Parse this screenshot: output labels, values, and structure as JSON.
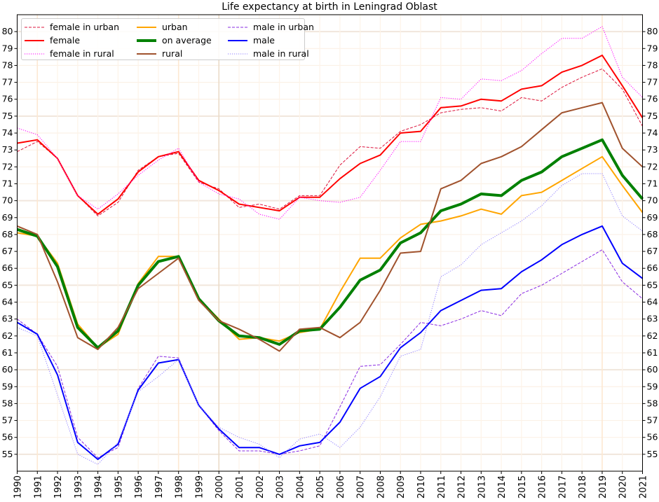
{
  "chart_data": {
    "type": "line",
    "title": "Life expectancy at birth in Leningrad Oblast",
    "xlabel": "",
    "ylabel": "",
    "xlim": [
      1990,
      2021
    ],
    "ylim": [
      54,
      81
    ],
    "grid": true,
    "legend_position": "top-left",
    "x": [
      1990,
      1991,
      1992,
      1993,
      1994,
      1995,
      1996,
      1997,
      1998,
      1999,
      2000,
      2001,
      2002,
      2003,
      2004,
      2005,
      2006,
      2007,
      2008,
      2009,
      2010,
      2011,
      2012,
      2013,
      2014,
      2015,
      2016,
      2017,
      2018,
      2019,
      2020,
      2021
    ],
    "x_tick_labels": [
      "1990",
      "1991",
      "1992",
      "1993",
      "1994",
      "1995",
      "1996",
      "1997",
      "1998",
      "1999",
      "2000",
      "2001",
      "2002",
      "2003",
      "2004",
      "2005",
      "2006",
      "2007",
      "2008",
      "2009",
      "2010",
      "2011",
      "2012",
      "2013",
      "2014",
      "2015",
      "2016",
      "2017",
      "2018",
      "2019",
      "2020",
      "2021"
    ],
    "y_ticks": [
      55,
      56,
      57,
      58,
      59,
      60,
      61,
      62,
      63,
      64,
      65,
      66,
      67,
      68,
      69,
      70,
      71,
      72,
      73,
      74,
      75,
      76,
      77,
      78,
      79,
      80
    ],
    "y_tick_labels": [
      "55",
      "56",
      "57",
      "58",
      "59",
      "60",
      "61",
      "62",
      "63",
      "64",
      "65",
      "66",
      "67",
      "68",
      "69",
      "70",
      "71",
      "72",
      "73",
      "74",
      "75",
      "76",
      "77",
      "78",
      "79",
      "80"
    ],
    "series": [
      {
        "name": "female in urban",
        "color": "#dc143c",
        "style": "dashed",
        "width": 1,
        "values": [
          72.9,
          73.5,
          72.5,
          70.3,
          69.1,
          69.9,
          71.8,
          72.6,
          72.8,
          71.1,
          70.7,
          69.6,
          69.8,
          69.5,
          70.3,
          70.3,
          72.1,
          73.2,
          73.1,
          74.1,
          74.5,
          75.2,
          75.4,
          75.5,
          75.3,
          76.1,
          75.9,
          76.7,
          77.3,
          77.8,
          76.6,
          74.4
        ]
      },
      {
        "name": "female",
        "color": "#ff0000",
        "style": "solid",
        "width": 2,
        "values": [
          73.4,
          73.6,
          72.5,
          70.3,
          69.2,
          70.1,
          71.7,
          72.6,
          72.9,
          71.2,
          70.6,
          69.8,
          69.6,
          69.4,
          70.2,
          70.2,
          71.3,
          72.2,
          72.7,
          74.0,
          74.1,
          75.5,
          75.6,
          76.0,
          75.9,
          76.6,
          76.8,
          77.6,
          78.0,
          78.6,
          76.8,
          74.9
        ]
      },
      {
        "name": "female in rural",
        "color": "#ff00ff",
        "style": "dotted",
        "width": 1,
        "values": [
          74.3,
          73.9,
          72.5,
          70.3,
          69.5,
          70.4,
          71.5,
          72.4,
          73.1,
          71.1,
          70.4,
          70.1,
          69.2,
          68.9,
          70.2,
          70.0,
          69.9,
          70.2,
          71.8,
          73.5,
          73.5,
          76.1,
          76.0,
          77.2,
          77.1,
          77.7,
          78.7,
          79.6,
          79.6,
          80.3,
          77.3,
          76.1
        ]
      },
      {
        "name": "urban",
        "color": "#ffa500",
        "style": "solid",
        "width": 2,
        "values": [
          68.1,
          67.9,
          66.3,
          62.7,
          61.3,
          62.1,
          65.1,
          66.7,
          66.7,
          64.2,
          63.0,
          61.8,
          61.9,
          61.7,
          62.2,
          62.4,
          64.6,
          66.6,
          66.6,
          67.8,
          68.6,
          68.8,
          69.1,
          69.5,
          69.2,
          70.3,
          70.5,
          71.2,
          71.9,
          72.6,
          70.9,
          69.3
        ]
      },
      {
        "name": "on average",
        "color": "#008000",
        "style": "solid",
        "width": 4,
        "values": [
          68.3,
          67.9,
          66.1,
          62.5,
          61.3,
          62.3,
          65.0,
          66.4,
          66.7,
          64.2,
          62.9,
          62.0,
          61.9,
          61.5,
          62.3,
          62.4,
          63.7,
          65.3,
          65.9,
          67.5,
          68.1,
          69.4,
          69.8,
          70.4,
          70.3,
          71.2,
          71.7,
          72.6,
          73.1,
          73.6,
          71.5,
          70.1
        ]
      },
      {
        "name": "rural",
        "color": "#a0522d",
        "style": "solid",
        "width": 2,
        "values": [
          68.5,
          68.0,
          65.2,
          61.9,
          61.2,
          62.5,
          64.8,
          65.7,
          66.6,
          64.1,
          62.9,
          62.4,
          61.8,
          61.1,
          62.4,
          62.5,
          61.9,
          62.8,
          64.7,
          66.9,
          67.0,
          70.7,
          71.2,
          72.2,
          72.6,
          73.2,
          74.2,
          75.2,
          75.5,
          75.8,
          73.1,
          72.0
        ]
      },
      {
        "name": "male in urban",
        "color": "#8a2be2",
        "style": "dashed",
        "width": 1,
        "values": [
          63.0,
          62.1,
          60.2,
          56.0,
          54.8,
          55.4,
          58.9,
          60.8,
          60.7,
          57.9,
          56.4,
          55.2,
          55.2,
          55.0,
          55.2,
          55.5,
          57.8,
          60.2,
          60.3,
          61.5,
          62.8,
          62.6,
          63.0,
          63.5,
          63.2,
          64.5,
          65.0,
          65.7,
          66.4,
          67.1,
          65.2,
          64.2
        ]
      },
      {
        "name": "male",
        "color": "#0000ff",
        "style": "solid",
        "width": 2,
        "values": [
          62.8,
          62.1,
          59.7,
          55.7,
          54.7,
          55.6,
          58.8,
          60.4,
          60.6,
          57.9,
          56.5,
          55.4,
          55.4,
          55.0,
          55.5,
          55.7,
          56.9,
          58.9,
          59.6,
          61.3,
          62.2,
          63.5,
          64.1,
          64.7,
          64.8,
          65.8,
          66.5,
          67.4,
          68.0,
          68.5,
          66.3,
          65.4
        ]
      },
      {
        "name": "male in rural",
        "color": "#8f7fff",
        "style": "dotted",
        "width": 1,
        "values": [
          62.5,
          62.0,
          58.5,
          55.0,
          54.4,
          55.7,
          58.7,
          59.6,
          60.6,
          57.9,
          56.6,
          56.0,
          55.6,
          54.8,
          55.9,
          56.2,
          55.4,
          56.6,
          58.4,
          60.8,
          61.2,
          65.5,
          66.2,
          67.4,
          68.1,
          68.8,
          69.7,
          70.9,
          71.6,
          71.6,
          69.1,
          68.2
        ]
      }
    ],
    "highlighted_years": [
      1991,
      1998,
      2000,
      2019
    ]
  }
}
